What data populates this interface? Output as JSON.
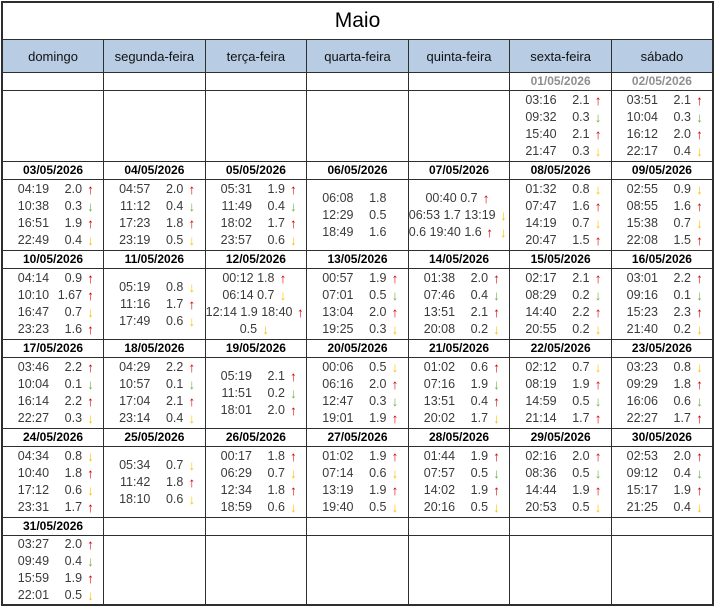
{
  "title": "Maio",
  "weekdays": [
    "domingo",
    "segunda-feira",
    "terça-feira",
    "quarta-feira",
    "quinta-feira",
    "sexta-feira",
    "sábado"
  ],
  "colors": {
    "header_bg": "#b8cce4",
    "grid_border": "#2e2e2e",
    "date_grey": "#8f8f8f",
    "tide_text": "#3a3a3a"
  },
  "arrow_styles": {
    "up-red": {
      "glyph": "↑",
      "color": "#d40000"
    },
    "down-green": {
      "glyph": "↓",
      "color": "#6fad41"
    },
    "down-yellow": {
      "glyph": "↓",
      "color": "#ffc000"
    }
  },
  "weeks": [
    {
      "days": [
        {
          "date": "",
          "entries": []
        },
        {
          "date": "",
          "entries": []
        },
        {
          "date": "",
          "entries": []
        },
        {
          "date": "",
          "entries": []
        },
        {
          "date": "",
          "entries": []
        },
        {
          "date": "01/05/2026",
          "grey": true,
          "entries": [
            [
              "03:16",
              "2.1",
              "up-red"
            ],
            [
              "09:32",
              "0.3",
              "down-green"
            ],
            [
              "15:40",
              "2.1",
              "up-red"
            ],
            [
              "21:47",
              "0.3",
              "down-yellow"
            ]
          ]
        },
        {
          "date": "02/05/2026",
          "grey": true,
          "entries": [
            [
              "03:51",
              "2.1",
              "up-red"
            ],
            [
              "10:04",
              "0.3",
              "down-green"
            ],
            [
              "16:12",
              "2.0",
              "up-red"
            ],
            [
              "22:17",
              "0.4",
              "down-yellow"
            ]
          ]
        }
      ]
    },
    {
      "days": [
        {
          "date": "03/05/2026",
          "entries": [
            [
              "04:19",
              "2.0",
              "up-red"
            ],
            [
              "10:38",
              "0.3",
              "down-green"
            ],
            [
              "16:51",
              "1.9",
              "up-red"
            ],
            [
              "22:49",
              "0.4",
              "down-yellow"
            ]
          ]
        },
        {
          "date": "04/05/2026",
          "entries": [
            [
              "04:57",
              "2.0",
              "up-red"
            ],
            [
              "11:12",
              "0.4",
              "down-green"
            ],
            [
              "17:23",
              "1.8",
              "up-red"
            ],
            [
              "23:19",
              "0.5",
              "down-yellow"
            ]
          ]
        },
        {
          "date": "05/05/2026",
          "entries": [
            [
              "05:31",
              "1.9",
              "up-red"
            ],
            [
              "11:49",
              "0.4",
              "down-green"
            ],
            [
              "18:02",
              "1.7",
              "up-red"
            ],
            [
              "23:57",
              "0.6",
              "down-yellow"
            ]
          ]
        },
        {
          "date": "06/05/2026",
          "entries": [
            [
              "06:08",
              "1.8",
              ""
            ],
            [
              "12:29",
              "0.5",
              ""
            ],
            [
              "18:49",
              "1.6",
              ""
            ]
          ]
        },
        {
          "date": "07/05/2026",
          "lines": [
            {
              "text": "00:40  0.7",
              "arrows": [
                "up-red"
              ]
            },
            {
              "text": "06:53  1.7 13:19",
              "arrows": [
                "down-yellow"
              ]
            },
            {
              "text": "0.6 19:40  1.6",
              "arrows": [
                "up-red",
                "down-yellow"
              ]
            }
          ]
        },
        {
          "date": "08/05/2026",
          "entries": [
            [
              "01:32",
              "0.8",
              "down-yellow"
            ],
            [
              "07:47",
              "1.6",
              "up-red"
            ],
            [
              "14:19",
              "0.7",
              "down-yellow"
            ],
            [
              "20:47",
              "1.5",
              "up-red"
            ]
          ]
        },
        {
          "date": "09/05/2026",
          "entries": [
            [
              "02:55",
              "0.9",
              "down-yellow"
            ],
            [
              "08:55",
              "1.6",
              "up-red"
            ],
            [
              "15:38",
              "0.7",
              "down-yellow"
            ],
            [
              "22:08",
              "1.5",
              "up-red"
            ]
          ]
        }
      ]
    },
    {
      "days": [
        {
          "date": "10/05/2026",
          "entries": [
            [
              "04:14",
              "0.9",
              "up-red"
            ],
            [
              "10:10",
              "1.67",
              "up-red"
            ],
            [
              "16:47",
              "0.7",
              "down-yellow"
            ],
            [
              "23:23",
              "1.6",
              "up-red"
            ]
          ]
        },
        {
          "date": "11/05/2026",
          "entries": [
            [
              "05:19",
              "0.8",
              "down-yellow"
            ],
            [
              "11:16",
              "1.7",
              "up-red"
            ],
            [
              "17:49",
              "0.6",
              "down-yellow"
            ]
          ]
        },
        {
          "date": "12/05/2026",
          "lines": [
            {
              "text": "00:12  1.8",
              "arrows": [
                "up-red"
              ]
            },
            {
              "text": "06:14  0.7",
              "arrows": [
                "down-yellow"
              ]
            },
            {
              "text": "12:14 1.9 18:40",
              "arrows": [
                "up-red"
              ]
            },
            {
              "text": "0.5",
              "arrows": [
                "down-yellow"
              ]
            }
          ]
        },
        {
          "date": "13/05/2026",
          "entries": [
            [
              "00:57",
              "1.9",
              "up-red"
            ],
            [
              "07:01",
              "0.5",
              "down-green"
            ],
            [
              "13:04",
              "2.0",
              "up-red"
            ],
            [
              "19:25",
              "0.3",
              "down-yellow"
            ]
          ]
        },
        {
          "date": "14/05/2026",
          "entries": [
            [
              "01:38",
              "2.0",
              "up-red"
            ],
            [
              "07:46",
              "0.4",
              "down-green"
            ],
            [
              "13:51",
              "2.1",
              "up-red"
            ],
            [
              "20:08",
              "0.2",
              "down-yellow"
            ]
          ]
        },
        {
          "date": "15/05/2026",
          "entries": [
            [
              "02:17",
              "2.1",
              "up-red"
            ],
            [
              "08:29",
              "0.2",
              "down-green"
            ],
            [
              "14:40",
              "2.2",
              "up-red"
            ],
            [
              "20:55",
              "0.2",
              "down-yellow"
            ]
          ]
        },
        {
          "date": "16/05/2026",
          "entries": [
            [
              "03:01",
              "2.2",
              "up-red"
            ],
            [
              "09:16",
              "0.1",
              "down-green"
            ],
            [
              "15:23",
              "2.3",
              "up-red"
            ],
            [
              "21:40",
              "0.2",
              "down-yellow"
            ]
          ]
        }
      ]
    },
    {
      "days": [
        {
          "date": "17/05/2026",
          "entries": [
            [
              "03:46",
              "2.2",
              "up-red"
            ],
            [
              "10:04",
              "0.1",
              "down-green"
            ],
            [
              "16:14",
              "2.2",
              "up-red"
            ],
            [
              "22:27",
              "0.3",
              "down-yellow"
            ]
          ]
        },
        {
          "date": "18/05/2026",
          "entries": [
            [
              "04:29",
              "2.2",
              "up-red"
            ],
            [
              "10:57",
              "0.1",
              "down-green"
            ],
            [
              "17:04",
              "2.1",
              "up-red"
            ],
            [
              "23:14",
              "0.4",
              "down-yellow"
            ]
          ]
        },
        {
          "date": "19/05/2026",
          "entries": [
            [
              "05:19",
              "2.1",
              "up-red"
            ],
            [
              "11:51",
              "0.2",
              "down-green"
            ],
            [
              "18:01",
              "2.0",
              "up-red"
            ]
          ]
        },
        {
          "date": "20/05/2026",
          "entries": [
            [
              "00:06",
              "0.5",
              "down-yellow"
            ],
            [
              "06:16",
              "2.0",
              "up-red"
            ],
            [
              "12:47",
              "0.3",
              "down-green"
            ],
            [
              "19:01",
              "1.9",
              "up-red"
            ]
          ]
        },
        {
          "date": "21/05/2026",
          "entries": [
            [
              "01:02",
              "0.6",
              "up-red"
            ],
            [
              "07:16",
              "1.9",
              "down-green"
            ],
            [
              "13:51",
              "0.4",
              "up-red"
            ],
            [
              "20:02",
              "1.7",
              "down-yellow"
            ]
          ]
        },
        {
          "date": "22/05/2026",
          "entries": [
            [
              "02:12",
              "0.7",
              "down-yellow"
            ],
            [
              "08:19",
              "1.9",
              "up-red"
            ],
            [
              "14:59",
              "0.5",
              "down-green"
            ],
            [
              "21:14",
              "1.7",
              "up-red"
            ]
          ]
        },
        {
          "date": "23/05/2026",
          "entries": [
            [
              "03:23",
              "0.8",
              "down-yellow"
            ],
            [
              "09:29",
              "1.8",
              "up-red"
            ],
            [
              "16:06",
              "0.6",
              "down-green"
            ],
            [
              "22:27",
              "1.7",
              "up-red"
            ]
          ]
        }
      ]
    },
    {
      "days": [
        {
          "date": "24/05/2026",
          "entries": [
            [
              "04:34",
              "0.8",
              "down-yellow"
            ],
            [
              "10:40",
              "1.8",
              "up-red"
            ],
            [
              "17:12",
              "0.6",
              "down-yellow"
            ],
            [
              "23:31",
              "1.7",
              "up-red"
            ]
          ]
        },
        {
          "date": "25/05/2026",
          "entries": [
            [
              "05:34",
              "0.7",
              "down-yellow"
            ],
            [
              "11:42",
              "1.8",
              "up-red"
            ],
            [
              "18:10",
              "0.6",
              "down-yellow"
            ]
          ]
        },
        {
          "date": "26/05/2026",
          "entries": [
            [
              "00:17",
              "1.8",
              "up-red"
            ],
            [
              "06:29",
              "0.7",
              "down-yellow"
            ],
            [
              "12:34",
              "1.8",
              "up-red"
            ],
            [
              "18:59",
              "0.6",
              "down-yellow"
            ]
          ]
        },
        {
          "date": "27/05/2026",
          "entries": [
            [
              "01:02",
              "1.9",
              "up-red"
            ],
            [
              "07:14",
              "0.6",
              "down-yellow"
            ],
            [
              "13:19",
              "1.9",
              "up-red"
            ],
            [
              "19:40",
              "0.5",
              "down-yellow"
            ]
          ]
        },
        {
          "date": "28/05/2026",
          "entries": [
            [
              "01:44",
              "1.9",
              "up-red"
            ],
            [
              "07:57",
              "0.5",
              "down-green"
            ],
            [
              "14:02",
              "1.9",
              "up-red"
            ],
            [
              "20:16",
              "0.5",
              "down-yellow"
            ]
          ]
        },
        {
          "date": "29/05/2026",
          "entries": [
            [
              "02:16",
              "2.0",
              "up-red"
            ],
            [
              "08:36",
              "0.5",
              "down-green"
            ],
            [
              "14:44",
              "1.9",
              "up-red"
            ],
            [
              "20:53",
              "0.5",
              "down-yellow"
            ]
          ]
        },
        {
          "date": "30/05/2026",
          "entries": [
            [
              "02:53",
              "2.0",
              "up-red"
            ],
            [
              "09:12",
              "0.4",
              "down-green"
            ],
            [
              "15:17",
              "1.9",
              "up-red"
            ],
            [
              "21:25",
              "0.4",
              "down-yellow"
            ]
          ]
        }
      ]
    },
    {
      "days": [
        {
          "date": "31/05/2026",
          "entries": [
            [
              "03:27",
              "2.0",
              "up-red"
            ],
            [
              "09:49",
              "0.4",
              "down-green"
            ],
            [
              "15:59",
              "1.9",
              "up-red"
            ],
            [
              "22:01",
              "0.5",
              "down-yellow"
            ]
          ]
        },
        {
          "date": "",
          "entries": []
        },
        {
          "date": "",
          "entries": []
        },
        {
          "date": "",
          "entries": []
        },
        {
          "date": "",
          "entries": []
        },
        {
          "date": "",
          "entries": []
        },
        {
          "date": "",
          "entries": []
        }
      ]
    }
  ]
}
